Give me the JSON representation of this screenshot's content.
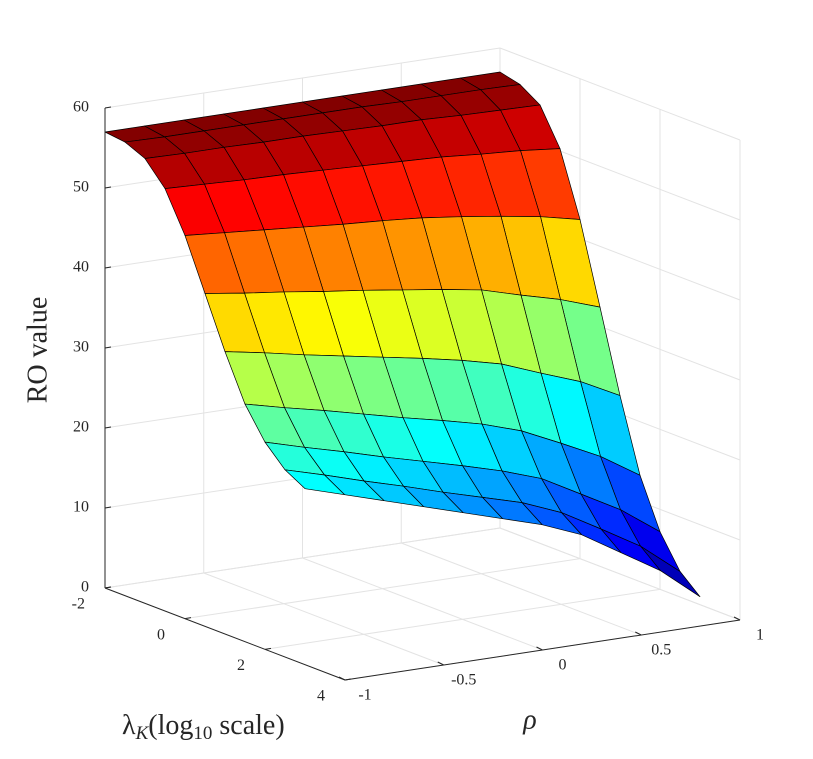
{
  "chart_data": {
    "type": "surface",
    "zlabel": "RO value",
    "ylabel": "ρ",
    "xlabel": [
      "λ",
      "K",
      "(log",
      "10",
      " scale)"
    ],
    "x": [
      -2,
      -1.5,
      -1,
      -0.5,
      0,
      0.5,
      1,
      1.5,
      2,
      2.5,
      3
    ],
    "y": [
      -1,
      -0.8,
      -0.6,
      -0.4,
      -0.2,
      0,
      0.2,
      0.4,
      0.6,
      0.8,
      1
    ],
    "z": [
      [
        57,
        57,
        57,
        57,
        57,
        57,
        57,
        57,
        57,
        57,
        57
      ],
      [
        56.7,
        56.6,
        56.6,
        56.6,
        56.6,
        56.6,
        56.6,
        56.5,
        56.5,
        56.5,
        56.4
      ],
      [
        55.6,
        55.5,
        55.5,
        55.4,
        55.4,
        55.3,
        55.2,
        55.2,
        55.0,
        54.9,
        54.8
      ],
      [
        52.8,
        52.6,
        52.4,
        52.3,
        52.1,
        51.9,
        51.7,
        51.5,
        51.1,
        50.8,
        50.3
      ],
      [
        47.9,
        47.5,
        47.1,
        46.7,
        46.3,
        46.0,
        45.6,
        45.0,
        44.3,
        43.5,
        42.4
      ],
      [
        41.6,
        40.9,
        40.3,
        39.6,
        39.0,
        38.3,
        37.6,
        36.8,
        35.4,
        34.1,
        32.4
      ],
      [
        35.3,
        34.4,
        33.4,
        32.5,
        31.6,
        30.7,
        29.7,
        28.5,
        26.6,
        24.8,
        22.3
      ],
      [
        29.7,
        28.5,
        27.4,
        26.2,
        25.0,
        23.9,
        22.7,
        21.1,
        18.8,
        16.4,
        13.3
      ],
      [
        25.9,
        24.5,
        23.2,
        21.8,
        20.5,
        19.2,
        17.8,
        16.1,
        13.4,
        10.7,
        7.2
      ],
      [
        23.4,
        22.0,
        20.5,
        19.1,
        17.6,
        16.2,
        14.8,
        12.8,
        10.0,
        7.1,
        3.2
      ],
      [
        22,
        20.5,
        19,
        17.5,
        16,
        14.5,
        13,
        11,
        8,
        5,
        1
      ]
    ],
    "xlim": [
      -2,
      4
    ],
    "xticks": [
      -2,
      0,
      2,
      4
    ],
    "ylim": [
      -1,
      1
    ],
    "yticks": [
      -1,
      -0.5,
      0,
      0.5,
      1
    ],
    "zlim": [
      0,
      60
    ],
    "zticks": [
      0,
      10,
      20,
      30,
      40,
      50,
      60
    ],
    "colormap": "jet",
    "grid": true
  }
}
